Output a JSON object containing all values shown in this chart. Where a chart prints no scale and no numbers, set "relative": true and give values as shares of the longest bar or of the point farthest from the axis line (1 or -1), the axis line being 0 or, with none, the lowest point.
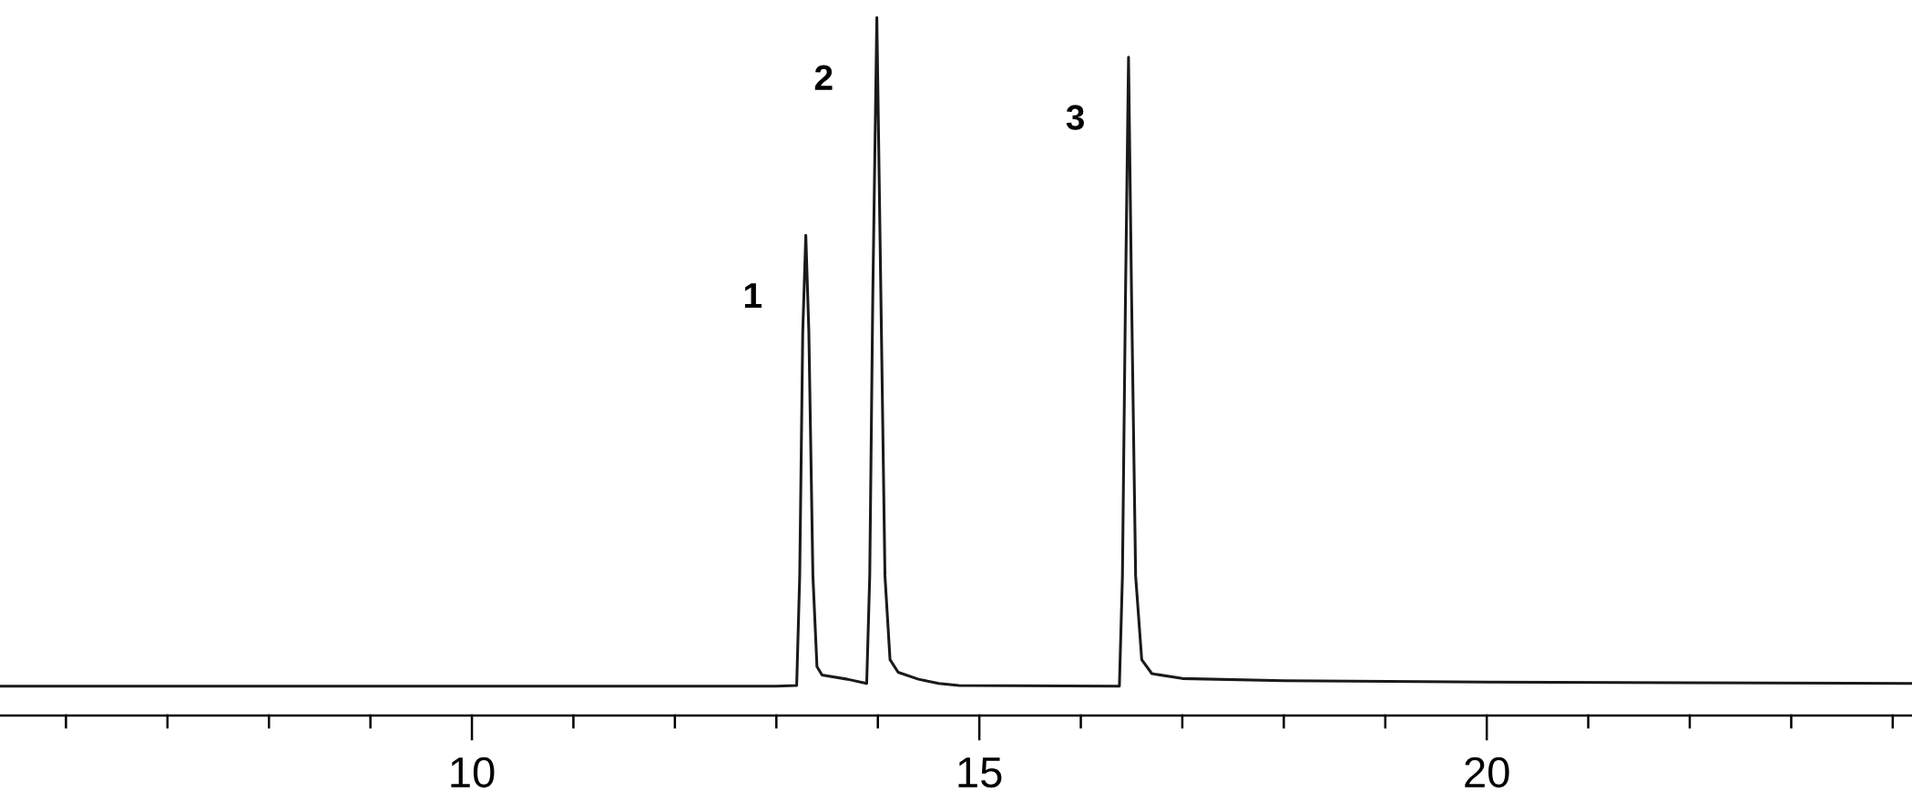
{
  "chart_data": {
    "type": "line",
    "relative": true,
    "series": [
      {
        "color": "#1a1a1a",
        "x": [
          5.35,
          13.0,
          13.2,
          13.23,
          13.26,
          13.29,
          13.32,
          13.36,
          13.4,
          13.45,
          13.7,
          13.89,
          13.92,
          13.95,
          13.99,
          14.03,
          14.07,
          14.12,
          14.2,
          14.4,
          14.6,
          14.8,
          16.38,
          16.41,
          16.44,
          16.47,
          16.5,
          16.54,
          16.6,
          16.7,
          17.0,
          18.0,
          20.0,
          22.0,
          24.19
        ],
        "values": [
          0.042,
          0.042,
          0.043,
          0.2,
          0.55,
          0.688,
          0.55,
          0.2,
          0.07,
          0.058,
          0.052,
          0.046,
          0.2,
          0.6,
          1.0,
          0.6,
          0.2,
          0.08,
          0.062,
          0.052,
          0.046,
          0.043,
          0.042,
          0.2,
          0.6,
          0.943,
          0.6,
          0.2,
          0.08,
          0.06,
          0.053,
          0.05,
          0.048,
          0.047,
          0.046
        ]
      }
    ],
    "xlim": [
      5.35,
      24.19
    ],
    "xticks": [
      {
        "value": 6,
        "label": null
      },
      {
        "value": 7,
        "label": null
      },
      {
        "value": 8,
        "label": null
      },
      {
        "value": 9,
        "label": null
      },
      10,
      {
        "value": 11,
        "label": null
      },
      {
        "value": 12,
        "label": null
      },
      {
        "value": 13,
        "label": null
      },
      {
        "value": 14,
        "label": null
      },
      15,
      {
        "value": 16,
        "label": null
      },
      {
        "value": 17,
        "label": null
      },
      {
        "value": 18,
        "label": null
      },
      {
        "value": 19,
        "label": null
      },
      20,
      {
        "value": 21,
        "label": null
      },
      {
        "value": 22,
        "label": null
      },
      {
        "value": 23,
        "label": null
      },
      {
        "value": 24,
        "label": null
      }
    ],
    "annotations": [
      {
        "text": "1",
        "x": 13.29,
        "y": 0.688
      },
      {
        "text": "2",
        "x": 13.99,
        "y": 1.0
      },
      {
        "text": "3",
        "x": 16.47,
        "y": 0.943
      }
    ],
    "grid": false,
    "legend": false,
    "marker": "none",
    "line_style": "solid"
  }
}
